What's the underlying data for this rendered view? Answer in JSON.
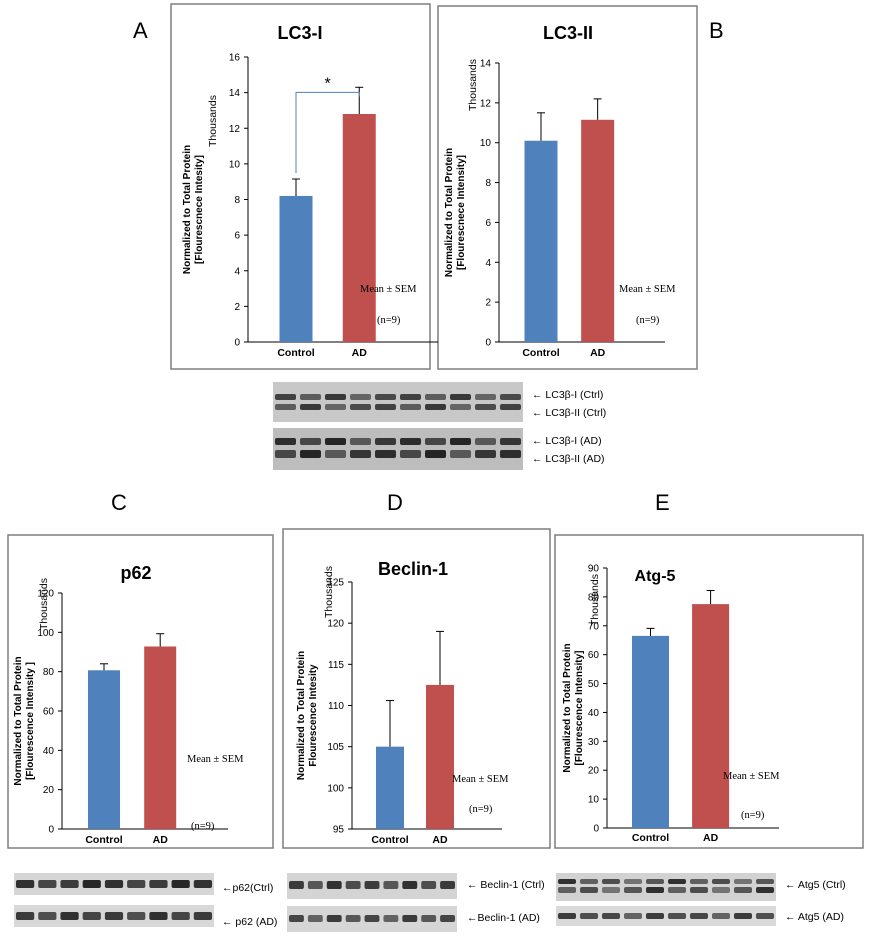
{
  "panel_letters": {
    "A": "A",
    "B": "B",
    "C": "C",
    "D": "D",
    "E": "E"
  },
  "colors": {
    "control": "#4f81bd",
    "ad": "#c0504d",
    "axis": "#000000",
    "frame": "#7f7f7f",
    "bracket": "#4f81bd"
  },
  "note": {
    "mean_sem": "Mean ± SEM",
    "n": "(n=9)"
  },
  "chart_data": [
    {
      "panel": "A",
      "type": "bar",
      "title": "LC3-I",
      "categories": [
        "Control",
        "AD"
      ],
      "values": [
        8.2,
        12.8
      ],
      "errors": [
        0.95,
        1.5
      ],
      "ylim": [
        0,
        16
      ],
      "yticks": [
        "0",
        "2",
        "4",
        "6",
        "8",
        "10",
        "12",
        "14",
        "16"
      ],
      "ylabel": [
        "Normalized to Total Protein",
        "[Flourescnece Intesity]"
      ],
      "units": "Thousands",
      "significance": "*",
      "grid": false
    },
    {
      "panel": "B",
      "type": "bar",
      "title": "LC3-II",
      "categories": [
        "Control",
        "AD"
      ],
      "values": [
        10.1,
        11.15
      ],
      "errors": [
        1.4,
        1.05
      ],
      "ylim": [
        0,
        14
      ],
      "yticks": [
        "0",
        "2",
        "4",
        "6",
        "8",
        "10",
        "12",
        "14"
      ],
      "ylabel": [
        "Normalized to Total Protein",
        "[Flourescnece Intensity]"
      ],
      "units": "Thousands",
      "grid": false
    },
    {
      "panel": "C",
      "type": "bar",
      "title": "p62",
      "categories": [
        "Control",
        "AD"
      ],
      "values": [
        80.7,
        92.8
      ],
      "errors": [
        3.3,
        6.5
      ],
      "ylim": [
        0,
        120
      ],
      "yticks": [
        "0",
        "20",
        "40",
        "60",
        "80",
        "100",
        "120"
      ],
      "ylabel": [
        "Normalized to Total Protein",
        "[Flourescence Intensity ]"
      ],
      "units": "Thousands",
      "grid": false
    },
    {
      "panel": "D",
      "type": "bar",
      "title": "Beclin-1",
      "categories": [
        "Control",
        "AD"
      ],
      "values": [
        105,
        112.5
      ],
      "errors": [
        5.6,
        6.5
      ],
      "ylim": [
        95,
        125
      ],
      "yticks": [
        "95",
        "100",
        "105",
        "110",
        "115",
        "120",
        "125"
      ],
      "ylabel": [
        "Normalized to Total Protein",
        "Flourescence Intesity"
      ],
      "units": "Thousands",
      "grid": false
    },
    {
      "panel": "E",
      "type": "bar",
      "title": "Atg-5",
      "categories": [
        "Control",
        "AD"
      ],
      "values": [
        66.5,
        77.5
      ],
      "errors": [
        2.6,
        4.7
      ],
      "ylim": [
        0,
        90
      ],
      "yticks": [
        "0",
        "10",
        "20",
        "30",
        "40",
        "50",
        "60",
        "70",
        "80",
        "90"
      ],
      "ylabel": [
        "Normalized to Total Protein",
        "[Flourescence Intensity]"
      ],
      "units": "Thousands",
      "grid": false
    }
  ],
  "blots": {
    "lc3": [
      "← LC3β-I (Ctrl)",
      "← LC3β-II (Ctrl)",
      "← LC3β-I (AD)",
      "← LC3β-II (AD)"
    ],
    "p62": [
      "←p62(Ctrl)",
      "← p62 (AD)"
    ],
    "beclin": [
      "← Beclin-1 (Ctrl)",
      "←Beclin-1 (AD)"
    ],
    "atg5": [
      "← Atg5 (Ctrl)",
      "← Atg5 (AD)"
    ]
  }
}
